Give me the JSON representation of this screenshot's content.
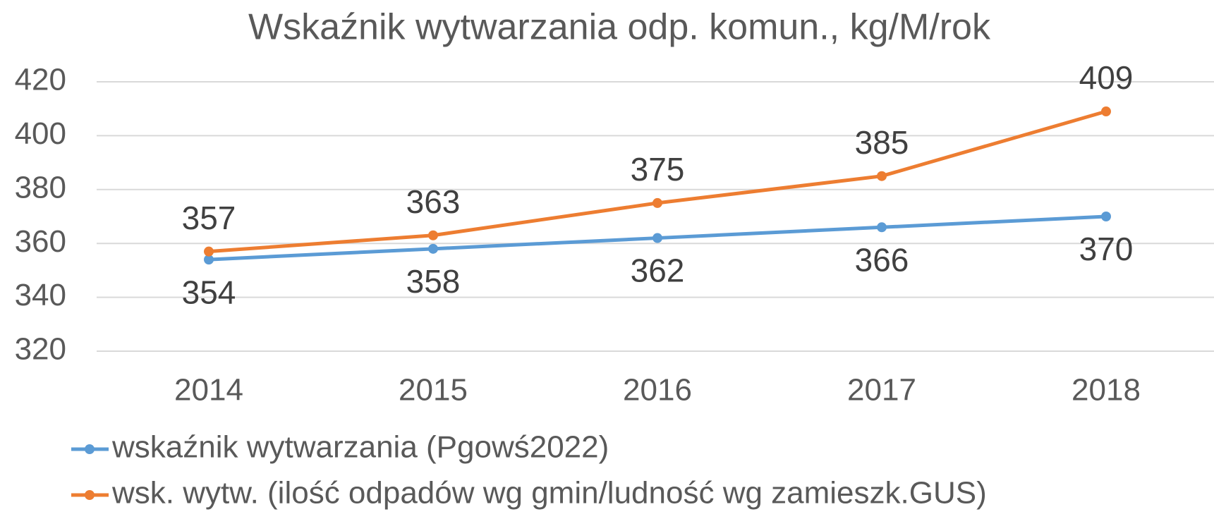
{
  "chart_data": {
    "type": "line",
    "title": "Wskaźnik wytwarzania odp. komun., kg/M/rok",
    "categories": [
      "2014",
      "2015",
      "2016",
      "2017",
      "2018"
    ],
    "series": [
      {
        "name": "wskaźnik wytwarzania (Pgowś2022)",
        "color": "#5b9bd5",
        "values": [
          354,
          358,
          362,
          366,
          370
        ],
        "label_position": "below"
      },
      {
        "name": "wsk. wytw. (ilość odpadów wg gmin/ludność wg zamieszk.GUS)",
        "color": "#ed7d31",
        "values": [
          357,
          363,
          375,
          385,
          409
        ],
        "label_position": "above"
      }
    ],
    "ylim": [
      320,
      420
    ],
    "yticks": [
      320,
      340,
      360,
      380,
      400,
      420
    ],
    "grid": true,
    "legend": "bottom"
  }
}
